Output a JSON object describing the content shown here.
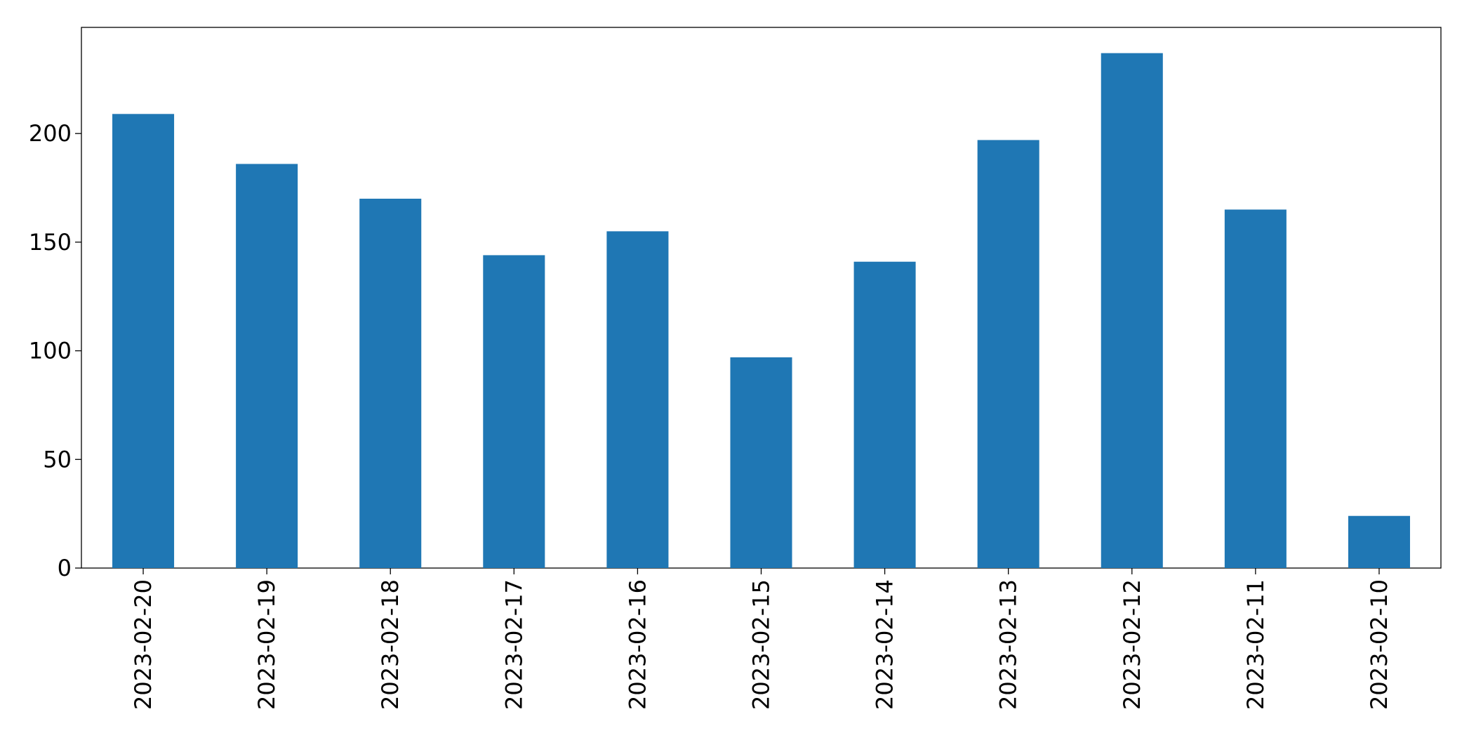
{
  "chart_data": {
    "type": "bar",
    "categories": [
      "2023-02-20",
      "2023-02-19",
      "2023-02-18",
      "2023-02-17",
      "2023-02-16",
      "2023-02-15",
      "2023-02-14",
      "2023-02-13",
      "2023-02-12",
      "2023-02-11",
      "2023-02-10"
    ],
    "values": [
      209,
      186,
      170,
      144,
      155,
      97,
      141,
      197,
      237,
      165,
      24
    ],
    "color": "#1f77b4",
    "ylim": [
      0,
      248.85
    ],
    "yticks": [
      0,
      50,
      100,
      150,
      200
    ],
    "grid": false
  }
}
